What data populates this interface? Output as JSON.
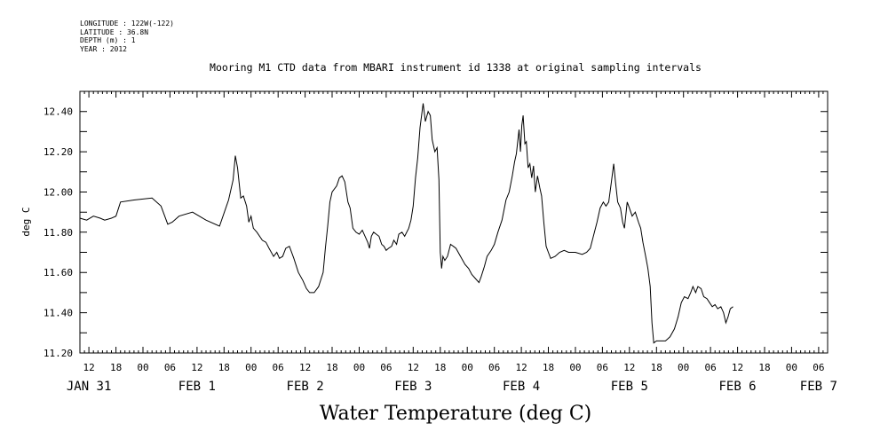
{
  "meta": {
    "longitude": "LONGITUDE : 122W(-122)",
    "latitude": "LATITUDE : 36.8N",
    "depth": "DEPTH (m) : 1",
    "year": "YEAR : 2012"
  },
  "chart_data": {
    "type": "line",
    "title": "Mooring M1 CTD data from MBARI instrument id 1338 at original sampling intervals",
    "xlabel": "Water Temperature (deg C)",
    "ylabel": "deg C",
    "x_unit": "hours since JAN 31 00",
    "xlim": [
      10,
      176
    ],
    "ylim": [
      11.2,
      12.5
    ],
    "yticks": [
      11.2,
      11.4,
      11.6,
      11.8,
      12.0,
      12.2,
      12.4
    ],
    "ytick_labels": [
      "11.20",
      "11.40",
      "11.60",
      "11.80",
      "12.00",
      "12.20",
      "12.40"
    ],
    "xticks": [
      12,
      18,
      24,
      30,
      36,
      42,
      48,
      54,
      60,
      66,
      72,
      78,
      84,
      90,
      96,
      102,
      108,
      114,
      120,
      126,
      132,
      138,
      144,
      150,
      156,
      162,
      168,
      174
    ],
    "xtick_labels": [
      "12",
      "18",
      "00",
      "06",
      "12",
      "18",
      "00",
      "06",
      "12",
      "18",
      "00",
      "06",
      "12",
      "18",
      "00",
      "06",
      "12",
      "18",
      "00",
      "06",
      "12",
      "18",
      "00",
      "06",
      "12",
      "18",
      "00",
      "06"
    ],
    "date_labels": [
      {
        "label": "JAN 31",
        "x": 12
      },
      {
        "label": "FEB 1",
        "x": 36
      },
      {
        "label": "FEB 2",
        "x": 60
      },
      {
        "label": "FEB 3",
        "x": 84
      },
      {
        "label": "FEB 4",
        "x": 108
      },
      {
        "label": "FEB 5",
        "x": 132
      },
      {
        "label": "FEB 6",
        "x": 156
      },
      {
        "label": "FEB 7",
        "x": 174
      }
    ],
    "series": [
      {
        "points": [
          [
            10.0,
            11.87
          ],
          [
            11.5,
            11.86
          ],
          [
            13.0,
            11.88
          ],
          [
            14.5,
            11.87
          ],
          [
            15.5,
            11.86
          ],
          [
            17.0,
            11.87
          ],
          [
            18.0,
            11.88
          ],
          [
            19.0,
            11.95
          ],
          [
            22.0,
            11.96
          ],
          [
            26.0,
            11.97
          ],
          [
            28.0,
            11.93
          ],
          [
            29.5,
            11.84
          ],
          [
            30.5,
            11.85
          ],
          [
            32.0,
            11.88
          ],
          [
            35.0,
            11.9
          ],
          [
            38.0,
            11.86
          ],
          [
            41.0,
            11.83
          ],
          [
            43.0,
            11.96
          ],
          [
            44.0,
            12.06
          ],
          [
            44.5,
            12.18
          ],
          [
            45.0,
            12.12
          ],
          [
            45.7,
            11.97
          ],
          [
            46.3,
            11.98
          ],
          [
            47.0,
            11.93
          ],
          [
            47.5,
            11.85
          ],
          [
            48.0,
            11.88
          ],
          [
            48.5,
            11.82
          ],
          [
            49.3,
            11.8
          ],
          [
            50.5,
            11.76
          ],
          [
            51.3,
            11.75
          ],
          [
            52.0,
            11.72
          ],
          [
            53.0,
            11.68
          ],
          [
            53.7,
            11.7
          ],
          [
            54.3,
            11.67
          ],
          [
            55.0,
            11.68
          ],
          [
            55.7,
            11.72
          ],
          [
            56.5,
            11.73
          ],
          [
            57.5,
            11.67
          ],
          [
            58.5,
            11.6
          ],
          [
            59.5,
            11.56
          ],
          [
            60.3,
            11.52
          ],
          [
            61.0,
            11.5
          ],
          [
            62.0,
            11.5
          ],
          [
            63.0,
            11.53
          ],
          [
            64.0,
            11.6
          ],
          [
            64.5,
            11.72
          ],
          [
            65.0,
            11.83
          ],
          [
            65.5,
            11.95
          ],
          [
            66.0,
            12.0
          ],
          [
            67.0,
            12.03
          ],
          [
            67.6,
            12.07
          ],
          [
            68.2,
            12.08
          ],
          [
            68.8,
            12.05
          ],
          [
            69.5,
            11.95
          ],
          [
            70.0,
            11.92
          ],
          [
            70.6,
            11.82
          ],
          [
            71.3,
            11.8
          ],
          [
            72.0,
            11.79
          ],
          [
            72.7,
            11.81
          ],
          [
            73.3,
            11.78
          ],
          [
            73.9,
            11.75
          ],
          [
            74.3,
            11.72
          ],
          [
            74.7,
            11.78
          ],
          [
            75.2,
            11.8
          ],
          [
            75.8,
            11.79
          ],
          [
            76.4,
            11.78
          ],
          [
            77.0,
            11.74
          ],
          [
            77.5,
            11.73
          ],
          [
            78.0,
            11.71
          ],
          [
            78.5,
            11.72
          ],
          [
            79.2,
            11.73
          ],
          [
            79.7,
            11.76
          ],
          [
            80.3,
            11.74
          ],
          [
            80.8,
            11.79
          ],
          [
            81.5,
            11.8
          ],
          [
            82.1,
            11.78
          ],
          [
            83.0,
            11.82
          ],
          [
            83.5,
            11.86
          ],
          [
            84.0,
            11.93
          ],
          [
            84.5,
            12.07
          ],
          [
            85.0,
            12.17
          ],
          [
            85.5,
            12.32
          ],
          [
            86.2,
            12.44
          ],
          [
            86.7,
            12.35
          ],
          [
            87.3,
            12.4
          ],
          [
            87.8,
            12.38
          ],
          [
            88.2,
            12.26
          ],
          [
            88.8,
            12.2
          ],
          [
            89.3,
            12.22
          ],
          [
            89.7,
            12.06
          ],
          [
            90.0,
            11.7
          ],
          [
            90.3,
            11.62
          ],
          [
            90.6,
            11.68
          ],
          [
            91.0,
            11.66
          ],
          [
            91.6,
            11.68
          ],
          [
            92.3,
            11.74
          ],
          [
            92.9,
            11.73
          ],
          [
            93.5,
            11.72
          ],
          [
            94.5,
            11.68
          ],
          [
            95.5,
            11.64
          ],
          [
            96.3,
            11.62
          ],
          [
            97.0,
            11.59
          ],
          [
            97.8,
            11.57
          ],
          [
            98.6,
            11.55
          ],
          [
            99.1,
            11.58
          ],
          [
            99.8,
            11.63
          ],
          [
            100.4,
            11.68
          ],
          [
            101.3,
            11.71
          ],
          [
            102.0,
            11.74
          ],
          [
            102.8,
            11.8
          ],
          [
            103.7,
            11.86
          ],
          [
            104.6,
            11.96
          ],
          [
            105.3,
            12.0
          ],
          [
            106.0,
            12.08
          ],
          [
            106.5,
            12.15
          ],
          [
            106.9,
            12.19
          ],
          [
            107.3,
            12.27
          ],
          [
            107.5,
            12.31
          ],
          [
            107.8,
            12.2
          ],
          [
            108.1,
            12.33
          ],
          [
            108.4,
            12.38
          ],
          [
            108.8,
            12.24
          ],
          [
            109.1,
            12.25
          ],
          [
            109.5,
            12.12
          ],
          [
            109.9,
            12.14
          ],
          [
            110.3,
            12.07
          ],
          [
            110.7,
            12.13
          ],
          [
            111.1,
            12.0
          ],
          [
            111.6,
            12.08
          ],
          [
            112.1,
            12.02
          ],
          [
            112.5,
            11.98
          ],
          [
            113.0,
            11.85
          ],
          [
            113.5,
            11.73
          ],
          [
            114.0,
            11.7
          ],
          [
            114.5,
            11.67
          ],
          [
            115.5,
            11.68
          ],
          [
            116.5,
            11.7
          ],
          [
            117.5,
            11.71
          ],
          [
            118.5,
            11.7
          ],
          [
            120.0,
            11.7
          ],
          [
            121.5,
            11.69
          ],
          [
            122.5,
            11.7
          ],
          [
            123.3,
            11.72
          ],
          [
            124.0,
            11.78
          ],
          [
            124.8,
            11.85
          ],
          [
            125.5,
            11.92
          ],
          [
            126.2,
            11.95
          ],
          [
            126.8,
            11.93
          ],
          [
            127.4,
            11.95
          ],
          [
            128.0,
            12.05
          ],
          [
            128.5,
            12.14
          ],
          [
            128.9,
            12.05
          ],
          [
            129.4,
            11.95
          ],
          [
            130.0,
            11.92
          ],
          [
            130.5,
            11.85
          ],
          [
            130.9,
            11.82
          ],
          [
            131.5,
            11.95
          ],
          [
            132.0,
            11.92
          ],
          [
            132.6,
            11.88
          ],
          [
            133.3,
            11.9
          ],
          [
            134.0,
            11.85
          ],
          [
            134.5,
            11.82
          ],
          [
            135.0,
            11.75
          ],
          [
            135.6,
            11.68
          ],
          [
            136.1,
            11.62
          ],
          [
            136.6,
            11.53
          ],
          [
            137.0,
            11.35
          ],
          [
            137.4,
            11.25
          ],
          [
            138.0,
            11.26
          ],
          [
            139.0,
            11.26
          ],
          [
            140.0,
            11.26
          ],
          [
            141.0,
            11.28
          ],
          [
            142.0,
            11.32
          ],
          [
            142.8,
            11.38
          ],
          [
            143.5,
            11.45
          ],
          [
            144.2,
            11.48
          ],
          [
            145.0,
            11.47
          ],
          [
            145.6,
            11.5
          ],
          [
            146.1,
            11.53
          ],
          [
            146.7,
            11.5
          ],
          [
            147.2,
            11.53
          ],
          [
            147.9,
            11.52
          ],
          [
            148.5,
            11.48
          ],
          [
            149.2,
            11.47
          ],
          [
            149.8,
            11.45
          ],
          [
            150.4,
            11.43
          ],
          [
            151.0,
            11.44
          ],
          [
            151.6,
            11.42
          ],
          [
            152.3,
            11.43
          ],
          [
            152.9,
            11.4
          ],
          [
            153.4,
            11.35
          ],
          [
            153.9,
            11.38
          ],
          [
            154.4,
            11.42
          ],
          [
            155.0,
            11.43
          ]
        ]
      }
    ]
  }
}
